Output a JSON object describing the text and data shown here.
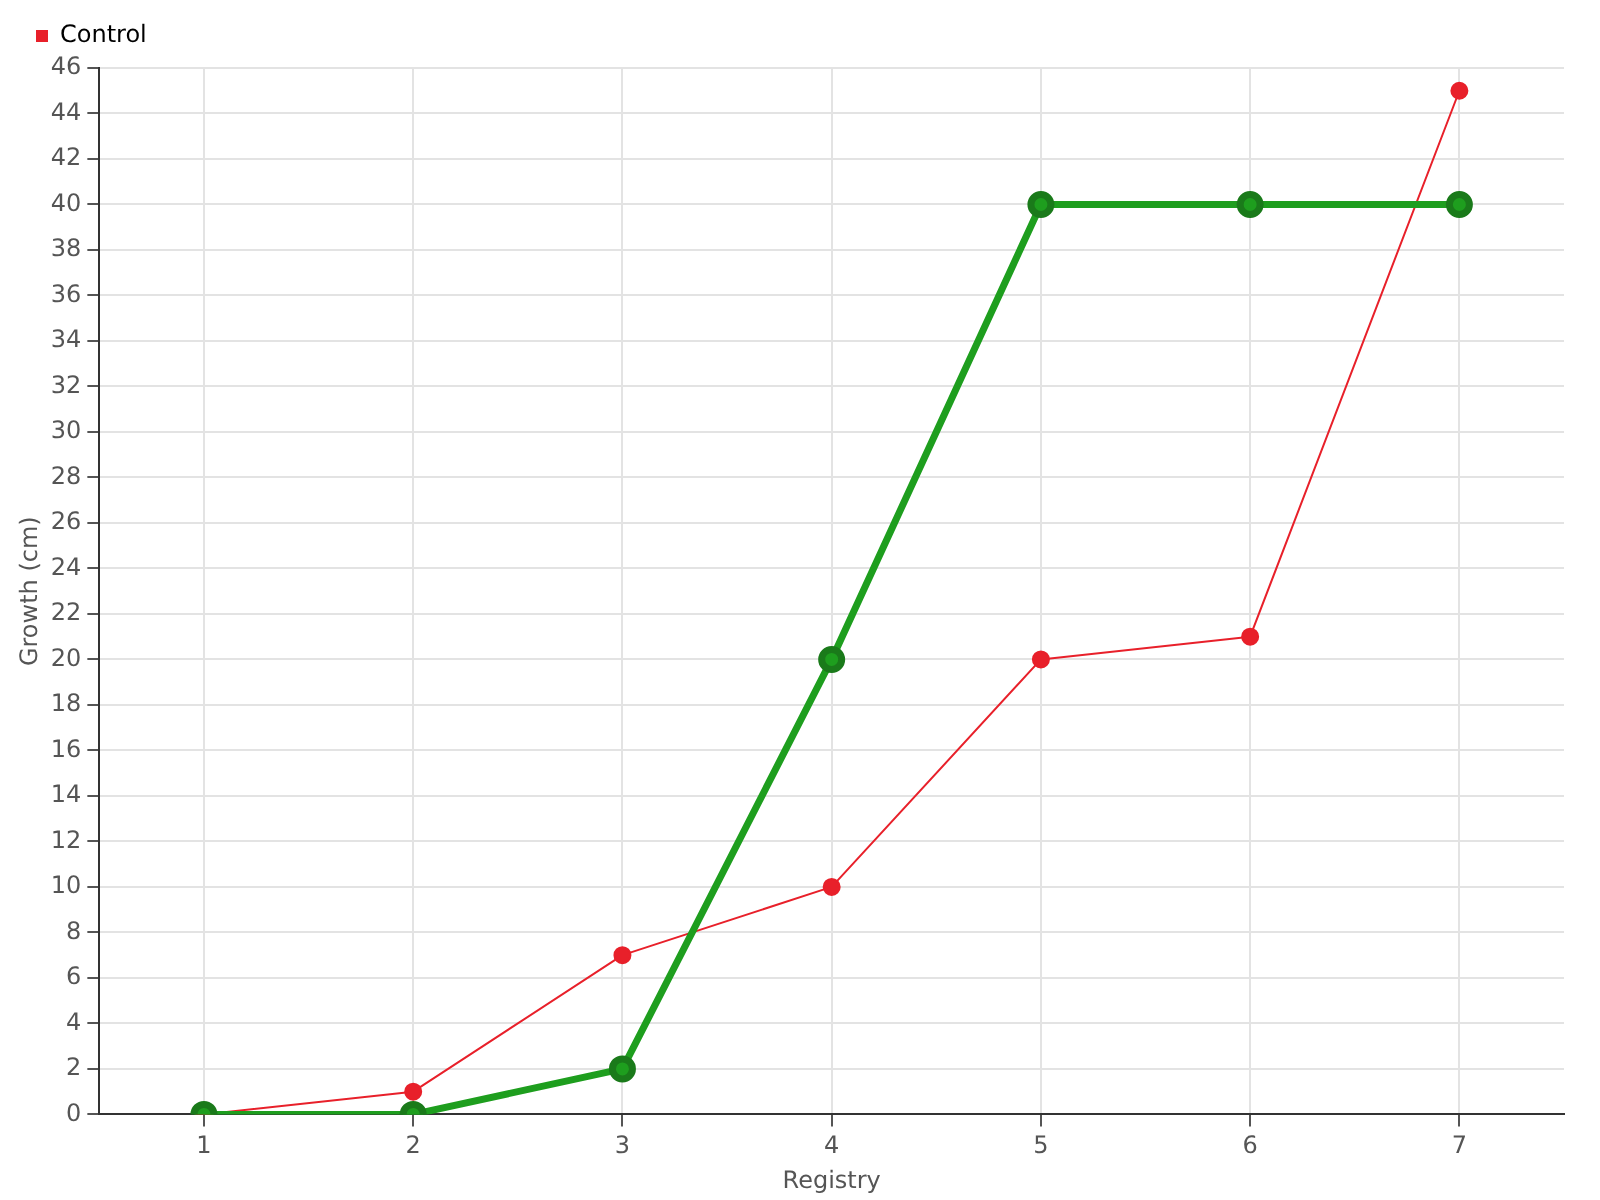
{
  "chart_data": {
    "type": "line",
    "xlabel": "Registry",
    "ylabel": "Growth (cm)",
    "x": [
      1,
      2,
      3,
      4,
      5,
      6,
      7
    ],
    "series": [
      {
        "color": "#1e9e1e",
        "values": [
          0,
          0,
          2,
          20,
          40,
          40,
          40
        ]
      },
      {
        "name": "Control",
        "color": "#e8202a",
        "values": [
          0,
          1,
          7,
          10,
          20,
          21,
          45
        ]
      }
    ],
    "xlim": [
      0.5,
      7.5
    ],
    "xticks": [
      1,
      2,
      3,
      4,
      5,
      6,
      7
    ],
    "ylim": [
      0,
      46
    ],
    "yticks": [
      0,
      2,
      4,
      6,
      8,
      10,
      12,
      14,
      16,
      18,
      20,
      22,
      24,
      26,
      28,
      30,
      32,
      34,
      36,
      38,
      40,
      42,
      44,
      46
    ],
    "grid": true,
    "legend": "top left",
    "marker": "circle",
    "line_style": "solid"
  }
}
